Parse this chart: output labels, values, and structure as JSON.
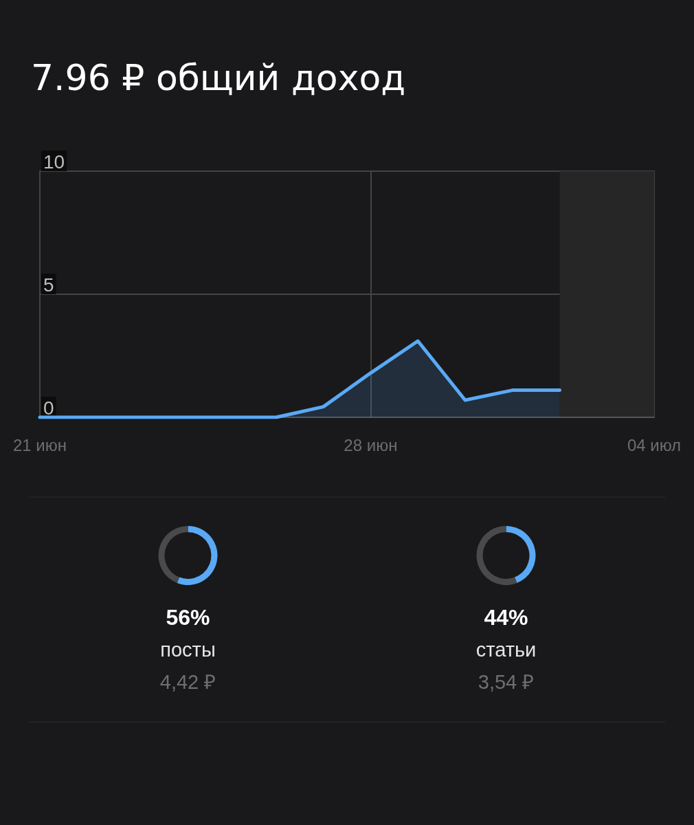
{
  "chart_data": [
    {
      "type": "area",
      "title": "7.96 ₽ общий доход",
      "x": [
        "--06-21",
        "--06-22",
        "--06-23",
        "--06-24",
        "--06-25",
        "--06-26",
        "--06-27",
        "--06-28",
        "--06-29",
        "--06-30",
        "--07-01",
        "--07-02"
      ],
      "series": [
        {
          "color": "#5aa9f5",
          "values": [
            0,
            0,
            0,
            0,
            0,
            0,
            0.43,
            1.8,
            3.1,
            0.7,
            1.1,
            1.1
          ]
        }
      ],
      "xlim": [
        "--06-21",
        "--07-04"
      ],
      "xticks": [
        {
          "value": "--06-21",
          "label": "21 июн"
        },
        {
          "value": "--06-28",
          "label": "28 июн"
        },
        {
          "value": "--07-04",
          "label": "04 июл"
        }
      ],
      "ylim": [
        0,
        10
      ],
      "yticks": [
        0,
        5,
        10
      ],
      "grid": true,
      "bands": [
        {
          "axis": "x",
          "from": "--07-02",
          "to": "--07-04",
          "color": "#262626"
        }
      ]
    },
    {
      "type": "donut",
      "categories": [
        "посты",
        null
      ],
      "values": [
        56,
        44
      ],
      "colors": [
        "#5aa9f5",
        "#4a4a4a"
      ],
      "value_labels": [
        "56%",
        null
      ],
      "annotations": [
        "4,42 ₽"
      ]
    },
    {
      "type": "donut",
      "categories": [
        "статьи",
        null
      ],
      "values": [
        44,
        56
      ],
      "colors": [
        "#5aa9f5",
        "#4a4a4a"
      ],
      "value_labels": [
        "44%",
        null
      ],
      "annotations": [
        "3,54 ₽"
      ]
    }
  ]
}
